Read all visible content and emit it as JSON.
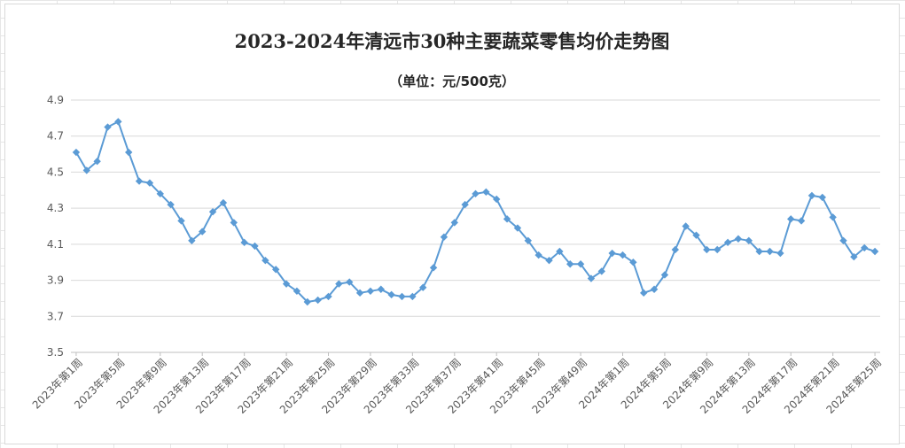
{
  "chart_data": {
    "type": "line",
    "title": "2023-2024年清远市30种主要蔬菜零售均价走势图",
    "subtitle": "（单位：元/500克）",
    "ylim": [
      3.5,
      4.9
    ],
    "y_ticks": [
      "3.5",
      "3.7",
      "3.9",
      "4.1",
      "4.3",
      "4.5",
      "4.7",
      "4.9"
    ],
    "grid": true,
    "line_color": "#5b9bd5",
    "x_tick_labels": [
      "2023年第1周",
      "2023年第5周",
      "2023年第9周",
      "2023年第13周",
      "2023年第17周",
      "2023年第21周",
      "2023年第25周",
      "2023年第29周",
      "2023年第33周",
      "2023年第37周",
      "2023年第41周",
      "2023年第45周",
      "2023年第49周",
      "2024年第1周",
      "2024年第5周",
      "2024年第9周",
      "2024年第13周",
      "2024年第17周",
      "2024年第21周",
      "2024年第25周"
    ],
    "values": [
      4.61,
      4.51,
      4.56,
      4.75,
      4.78,
      4.61,
      4.45,
      4.44,
      4.38,
      4.32,
      4.23,
      4.12,
      4.17,
      4.28,
      4.33,
      4.22,
      4.11,
      4.09,
      4.01,
      3.96,
      3.88,
      3.84,
      3.78,
      3.79,
      3.81,
      3.88,
      3.89,
      3.83,
      3.84,
      3.85,
      3.82,
      3.81,
      3.81,
      3.86,
      3.97,
      4.14,
      4.22,
      4.32,
      4.38,
      4.39,
      4.35,
      4.24,
      4.19,
      4.12,
      4.04,
      4.01,
      4.06,
      3.99,
      3.99,
      3.91,
      3.95,
      4.05,
      4.04,
      4.0,
      3.83,
      3.85,
      3.93,
      4.07,
      4.2,
      4.15,
      4.07,
      4.07,
      4.11,
      4.13,
      4.12,
      4.06,
      4.06,
      4.05,
      4.24,
      4.23,
      4.37,
      4.36,
      4.25,
      4.12,
      4.03,
      4.08,
      4.06
    ]
  }
}
